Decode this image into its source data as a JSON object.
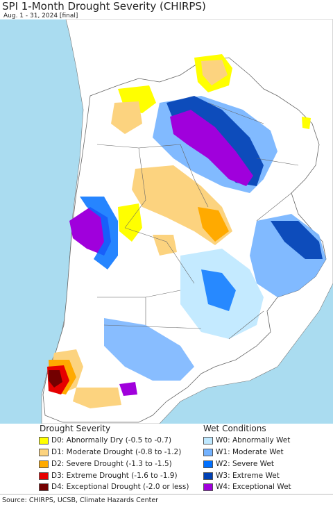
{
  "header": {
    "title": "SPI 1-Month Drought Severity (CHIRPS)",
    "subtitle": "Aug. 1 - 31, 2024 [final]"
  },
  "legend_drought": {
    "title": "Drought Severity",
    "items": [
      {
        "label": "D0: Abnormally Dry (-0.5 to -0.7)",
        "color": "#ffff00"
      },
      {
        "label": "D1: Moderate Drought (-0.8 to -1.2)",
        "color": "#fcd37f"
      },
      {
        "label": "D2: Severe Drought (-1.3 to -1.5)",
        "color": "#ffaa00"
      },
      {
        "label": "D3: Extreme Drought (-1.6 to -1.9)",
        "color": "#e60000"
      },
      {
        "label": "D4: Exceptional Drought (-2.0 or less)",
        "color": "#730000"
      }
    ]
  },
  "legend_wet": {
    "title": "Wet Conditions",
    "items": [
      {
        "label": "W0: Abnormally Wet",
        "color": "#bee8ff"
      },
      {
        "label": "W1: Moderate Wet",
        "color": "#73b2ff"
      },
      {
        "label": "W2: Severe Wet",
        "color": "#0070ff"
      },
      {
        "label": "W3: Extreme Wet",
        "color": "#0040b4"
      },
      {
        "label": "W4: Exceptional Wet",
        "color": "#a000dc"
      }
    ]
  },
  "colors": {
    "ocean": "#aadcf0",
    "outside_land": "#ffffff",
    "land_normal": "#ffffff",
    "borders": "#555555"
  },
  "footer": {
    "source": "Source: CHIRPS, UCSB, Climate Hazards Center"
  }
}
